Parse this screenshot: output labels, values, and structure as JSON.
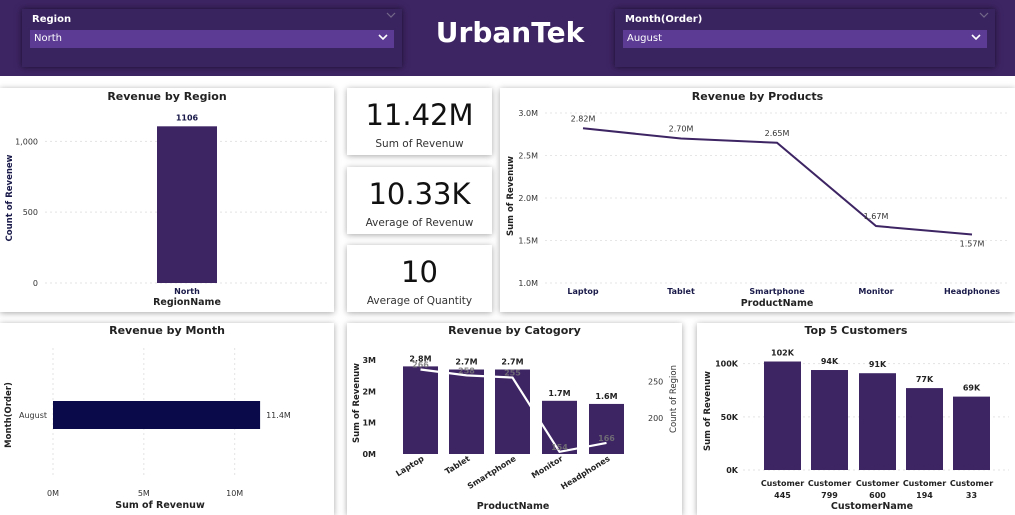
{
  "brand": "UrbanTek",
  "colors": {
    "header": "#3d2463",
    "bar": "#3d2463",
    "month_bar": "#0a0a4a",
    "line": "#3d2463"
  },
  "slicers": {
    "region": {
      "label": "Region",
      "value": "North"
    },
    "month": {
      "label": "Month(Order)",
      "value": "August"
    }
  },
  "kpis": [
    {
      "value": "11.42M",
      "label": "Sum of Revenuw"
    },
    {
      "value": "10.33K",
      "label": "Average of Revenuw"
    },
    {
      "value": "10",
      "label": "Average of Quantity"
    }
  ],
  "chart_data": [
    {
      "type": "bar",
      "title": "Revenue by Region",
      "xlabel": "RegionName",
      "ylabel": "Count of Revenew",
      "categories": [
        "North"
      ],
      "values": [
        1106
      ],
      "data_labels": [
        "1106"
      ],
      "yticks": [
        "0",
        "500",
        "1,000"
      ],
      "ylim": [
        0,
        1200
      ]
    },
    {
      "type": "line",
      "title": "Revenue by Products",
      "xlabel": "ProductName",
      "ylabel": "Sum of Revenuw",
      "categories": [
        "Laptop",
        "Tablet",
        "Smartphone",
        "Monitor",
        "Headphones"
      ],
      "values": [
        2.82,
        2.7,
        2.65,
        1.67,
        1.57
      ],
      "data_labels": [
        "2.82M",
        "2.70M",
        "2.65M",
        "1.67M",
        "1.57M"
      ],
      "yticks": [
        "1.0M",
        "1.5M",
        "2.0M",
        "2.5M",
        "3.0M"
      ],
      "ylim": [
        1.0,
        3.0
      ]
    },
    {
      "type": "bar",
      "orientation": "horizontal",
      "title": "Revenue by Month",
      "xlabel": "Sum of Revenuw",
      "ylabel": "Month(Order)",
      "categories": [
        "August"
      ],
      "values": [
        11.4
      ],
      "data_labels": [
        "11.4M"
      ],
      "xticks": [
        "0M",
        "5M",
        "10M"
      ],
      "xlim": [
        0,
        12
      ]
    },
    {
      "type": "bar",
      "title": "Revenue by Catogory",
      "xlabel": "ProductName",
      "ylabel": "Sum of Revenuw",
      "y2label": "Count of Region",
      "categories": [
        "Laptop",
        "Tablet",
        "Smartphone",
        "Monitor",
        "Headphones"
      ],
      "series": [
        {
          "type": "bar",
          "values": [
            2.8,
            2.7,
            2.7,
            1.7,
            1.6
          ],
          "data_labels": [
            "2.8M",
            "2.7M",
            "2.7M",
            "1.7M",
            "1.6M"
          ]
        },
        {
          "type": "line",
          "axis": "secondary",
          "values": [
            266,
            258,
            255,
            154,
            166
          ],
          "data_labels": [
            "266",
            "258",
            "255",
            "154",
            "166"
          ]
        }
      ],
      "yticks": [
        "0M",
        "1M",
        "2M",
        "3M"
      ],
      "ylim": [
        0,
        3.1
      ],
      "y2ticks": [
        "200",
        "250"
      ],
      "y2lim": [
        151,
        283
      ]
    },
    {
      "type": "bar",
      "title": "Top 5 Customers",
      "xlabel": "CustomerName",
      "ylabel": "Sum of Revenuw",
      "categories": [
        [
          "Customer",
          "445"
        ],
        [
          "Customer",
          "799"
        ],
        [
          "Customer",
          "600"
        ],
        [
          "Customer",
          "194"
        ],
        [
          "Customer",
          "33"
        ]
      ],
      "values": [
        102,
        94,
        91,
        77,
        69
      ],
      "data_labels": [
        "102K",
        "94K",
        "91K",
        "77K",
        "69K"
      ],
      "yticks": [
        "0K",
        "50K",
        "100K"
      ],
      "ylim": [
        0,
        110
      ]
    }
  ]
}
